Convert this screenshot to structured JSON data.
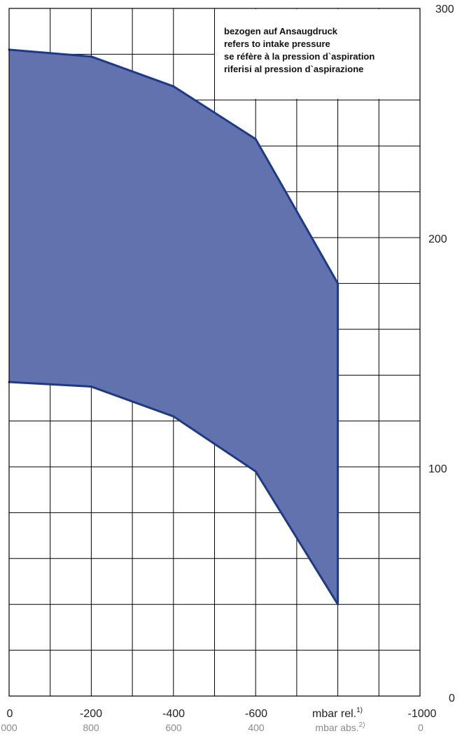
{
  "chart_data": {
    "type": "area",
    "title": "",
    "xlabel": "",
    "ylabel": "",
    "x_unit_rel": "mbar rel.",
    "x_unit_rel_note": "1)",
    "x_unit_abs": "mbar abs.",
    "x_unit_abs_note": "2)",
    "xlim": [
      0,
      -1000
    ],
    "ylim": [
      0,
      300
    ],
    "x_tick_labels_rel": [
      "0",
      "-200",
      "-400",
      "-600",
      "-1000"
    ],
    "x_tick_labels_abs": [
      "000",
      "800",
      "600",
      "400",
      "0"
    ],
    "y_tick_labels": [
      "0",
      "100",
      "200",
      "300"
    ],
    "grid": true,
    "annotation": [
      "bezogen auf Ansaugdruck",
      "refers to intake pressure",
      "se réfère à la pression d`aspiration",
      "riferisi al pression d`aspirazione"
    ],
    "fill_color": "#6272ae",
    "line_color": "#1f3a85",
    "upper_boundary": {
      "x": [
        0,
        -200,
        -400,
        -600,
        -800
      ],
      "y": [
        282,
        279,
        266,
        243,
        180
      ]
    },
    "lower_boundary": {
      "x": [
        0,
        -200,
        -400,
        -600,
        -800
      ],
      "y": [
        137,
        135,
        122,
        98,
        40
      ]
    }
  }
}
